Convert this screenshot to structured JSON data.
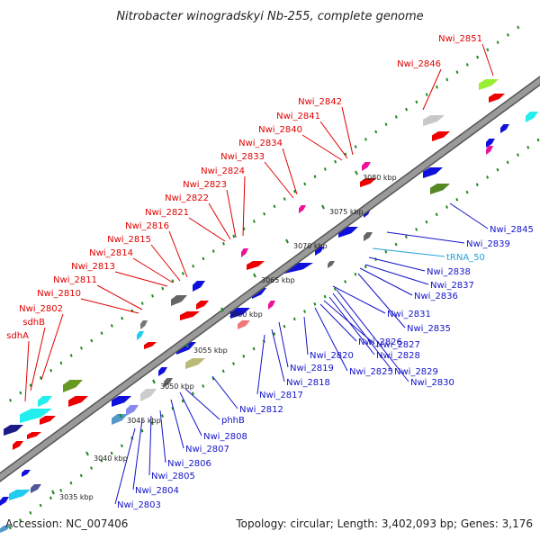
{
  "title": "Nitrobacter winogradskyi Nb-255, complete genome",
  "footer": {
    "accession": "Accession: NC_007406",
    "summary": "Topology: circular; Length: 3,402,093 bp; Genes: 3,176"
  },
  "colors": {
    "background": "#ffffff",
    "backbone": "#9a9a9a",
    "backbone_edge": "#555555",
    "tick_dot": "#1f8a1f",
    "top_label": "#e00000",
    "bottom_label": "#1414c8",
    "rna_label": "#22a3d6",
    "leader_line_red": "#e00000",
    "leader_line_blue": "#1414c8"
  },
  "ticks": [
    "3035 kbp",
    "3040 kbp",
    "3045 kbp",
    "3050 kbp",
    "3055 kbp",
    "3060 kbp",
    "3065 kbp",
    "3070 kbp",
    "3075 kbp",
    "3080 kbp"
  ],
  "top_labels": [
    "Nwi_2851",
    "Nwi_2846",
    "Nwi_2842",
    "Nwi_2841",
    "Nwi_2840",
    "Nwi_2834",
    "Nwi_2833",
    "Nwi_2824",
    "Nwi_2823",
    "Nwi_2822",
    "Nwi_2821",
    "Nwi_2816",
    "Nwi_2815",
    "Nwi_2814",
    "Nwi_2813",
    "Nwi_2811",
    "Nwi_2810",
    "Nwi_2802",
    "sdhB",
    "sdhA"
  ],
  "bottom_labels": [
    "Nwi_2845",
    "Nwi_2839",
    "tRNA_50",
    "Nwi_2838",
    "Nwi_2837",
    "Nwi_2836",
    "Nwi_2835",
    "Nwi_2831",
    "Nwi_2830",
    "Nwi_2829",
    "Nwi_2828",
    "Nwi_2827",
    "Nwi_2826",
    "Nwi_2825",
    "Nwi_2820",
    "Nwi_2819",
    "Nwi_2818",
    "Nwi_2817",
    "Nwi_2812",
    "phhB",
    "Nwi_2808",
    "Nwi_2807",
    "Nwi_2806",
    "Nwi_2805",
    "Nwi_2804",
    "Nwi_2803"
  ]
}
